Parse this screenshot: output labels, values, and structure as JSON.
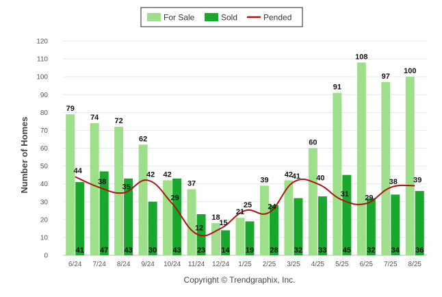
{
  "chart_data": {
    "type": "bar",
    "ylabel": "Number of Homes",
    "xlabel": "",
    "ylim": [
      0,
      120
    ],
    "yticks": [
      0,
      10,
      20,
      30,
      40,
      50,
      60,
      70,
      80,
      90,
      100,
      110,
      120
    ],
    "grid": true,
    "legend_position": "top-center",
    "categories": [
      "6/24",
      "7/24",
      "8/24",
      "9/24",
      "10/24",
      "11/24",
      "12/24",
      "1/25",
      "2/25",
      "3/25",
      "4/25",
      "5/25",
      "6/25",
      "7/25",
      "8/25"
    ],
    "series": [
      {
        "name": "For Sale",
        "type": "bar",
        "color": "#9ee08a",
        "values": [
          79,
          74,
          72,
          62,
          42,
          37,
          18,
          21,
          39,
          42,
          60,
          91,
          108,
          97,
          100
        ]
      },
      {
        "name": "Sold",
        "type": "bar",
        "color": "#18a82c",
        "values": [
          41,
          47,
          43,
          30,
          43,
          23,
          14,
          19,
          28,
          32,
          33,
          45,
          32,
          34,
          36
        ]
      },
      {
        "name": "Pended",
        "type": "line",
        "color": "#b01010",
        "values": [
          44,
          38,
          35,
          42,
          29,
          12,
          15,
          25,
          24,
          41,
          40,
          31,
          29,
          38,
          39
        ]
      }
    ]
  },
  "footer": {
    "copyright": "Copyright © Trendgraphix, Inc."
  }
}
